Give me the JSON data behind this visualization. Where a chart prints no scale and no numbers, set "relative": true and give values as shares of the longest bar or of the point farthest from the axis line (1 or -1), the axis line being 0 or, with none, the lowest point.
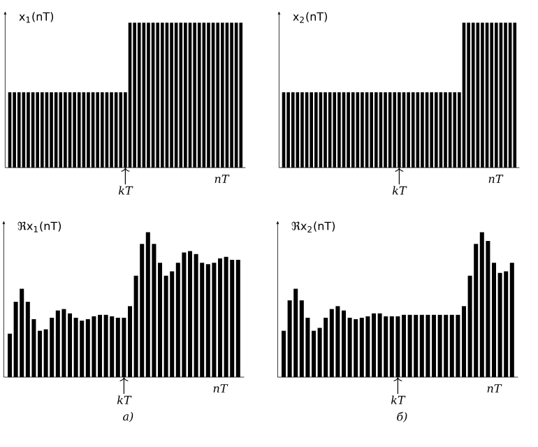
{
  "chart_data": [
    {
      "type": "bar",
      "relative": true,
      "ylabel": "x$_{1}$(nT)",
      "xlabel": "nT",
      "color": "#000000",
      "annotations": [
        "kT"
      ],
      "categories": [
        null,
        null,
        null,
        null,
        null,
        null,
        null,
        null,
        null,
        null,
        null,
        null,
        null,
        null,
        null,
        null,
        null,
        null,
        null,
        null,
        null,
        null,
        null,
        null,
        null,
        null,
        null,
        null,
        null,
        null,
        null,
        null,
        null,
        null,
        null,
        null,
        null,
        null,
        null,
        null,
        null,
        null,
        null,
        null,
        null,
        null,
        null,
        null,
        null,
        null,
        null
      ],
      "values": [
        0.52,
        0.52,
        0.52,
        0.52,
        0.52,
        0.52,
        0.52,
        0.52,
        0.52,
        0.52,
        0.52,
        0.52,
        0.52,
        0.52,
        0.52,
        0.52,
        0.52,
        0.52,
        0.52,
        0.52,
        0.52,
        0.52,
        0.52,
        0.52,
        0.52,
        0.52,
        1,
        1,
        1,
        1,
        1,
        1,
        1,
        1,
        1,
        1,
        1,
        1,
        1,
        1,
        1,
        1,
        1,
        1,
        1,
        1,
        1,
        1,
        1,
        1,
        1
      ]
    },
    {
      "type": "bar",
      "relative": true,
      "ylabel": "x$_{2}$(nT)",
      "xlabel": "nT",
      "color": "#000000",
      "annotations": [
        "kT"
      ],
      "categories": [
        null,
        null,
        null,
        null,
        null,
        null,
        null,
        null,
        null,
        null,
        null,
        null,
        null,
        null,
        null,
        null,
        null,
        null,
        null,
        null,
        null,
        null,
        null,
        null,
        null,
        null,
        null,
        null,
        null,
        null,
        null,
        null,
        null,
        null,
        null,
        null,
        null,
        null,
        null,
        null,
        null,
        null,
        null,
        null,
        null,
        null,
        null,
        null,
        null,
        null,
        null
      ],
      "values": [
        0.52,
        0.52,
        0.52,
        0.52,
        0.52,
        0.52,
        0.52,
        0.52,
        0.52,
        0.52,
        0.52,
        0.52,
        0.52,
        0.52,
        0.52,
        0.52,
        0.52,
        0.52,
        0.52,
        0.52,
        0.52,
        0.52,
        0.52,
        0.52,
        0.52,
        0.52,
        0.52,
        0.52,
        0.52,
        0.52,
        0.52,
        0.52,
        0.52,
        0.52,
        0.52,
        0.52,
        0.52,
        0.52,
        0.52,
        1,
        1,
        1,
        1,
        1,
        1,
        1,
        1,
        1,
        1,
        1,
        1
      ]
    },
    {
      "type": "bar",
      "relative": true,
      "ylabel": "ℜx$_{1}$(nT)",
      "xlabel": "nT",
      "color": "#000000",
      "annotations": [
        "kT",
        "а)"
      ],
      "categories": [
        null,
        null,
        null,
        null,
        null,
        null,
        null,
        null,
        null,
        null,
        null,
        null,
        null,
        null,
        null,
        null,
        null,
        null,
        null,
        null,
        null,
        null,
        null,
        null,
        null,
        null,
        null,
        null,
        null,
        null,
        null,
        null,
        null,
        null,
        null,
        null,
        null,
        null,
        null
      ],
      "values": [
        0.3,
        0.52,
        0.61,
        0.52,
        0.4,
        0.32,
        0.33,
        0.41,
        0.46,
        0.47,
        0.44,
        0.41,
        0.39,
        0.4,
        0.42,
        0.43,
        0.43,
        0.42,
        0.41,
        0.41,
        0.49,
        0.7,
        0.92,
        1,
        0.92,
        0.79,
        0.7,
        0.73,
        0.79,
        0.86,
        0.87,
        0.85,
        0.79,
        0.78,
        0.79,
        0.82,
        0.83,
        0.81,
        0.81
      ]
    },
    {
      "type": "bar",
      "relative": true,
      "ylabel": "ℜx$_{2}$(nT)",
      "xlabel": "nT",
      "color": "#000000",
      "annotations": [
        "kT",
        "б)"
      ],
      "categories": [
        null,
        null,
        null,
        null,
        null,
        null,
        null,
        null,
        null,
        null,
        null,
        null,
        null,
        null,
        null,
        null,
        null,
        null,
        null,
        null,
        null,
        null,
        null,
        null,
        null,
        null,
        null,
        null,
        null,
        null,
        null,
        null,
        null,
        null,
        null,
        null,
        null,
        null,
        null
      ],
      "values": [
        0.32,
        0.53,
        0.61,
        0.53,
        0.41,
        0.32,
        0.34,
        0.41,
        0.47,
        0.49,
        0.46,
        0.41,
        0.4,
        0.41,
        0.42,
        0.44,
        0.44,
        0.42,
        0.42,
        0.42,
        0.43,
        0.43,
        0.43,
        0.43,
        0.43,
        0.43,
        0.43,
        0.43,
        0.43,
        0.43,
        0.49,
        0.7,
        0.92,
        1,
        0.94,
        0.79,
        0.72,
        0.73,
        0.79
      ]
    }
  ]
}
